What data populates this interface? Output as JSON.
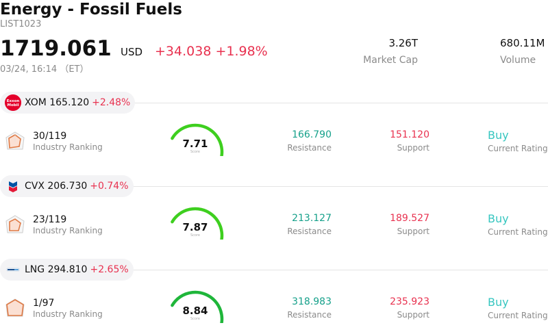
{
  "header": {
    "title": "Energy - Fossil Fuels",
    "code": "LIST1023",
    "price": "1719.061",
    "currency": "USD",
    "change": "+34.038 +1.98%",
    "datetime": "03/24, 16:14 （ET）",
    "market_cap_value": "3.26T",
    "market_cap_label": "Market Cap",
    "volume_value": "680.11M",
    "volume_label": "Volume"
  },
  "colors": {
    "up_red": "#e8314f",
    "resistance_green": "#15a08a",
    "rating_teal": "#36c6c0",
    "gauge_green": "#3ecf1f"
  },
  "stocks": [
    {
      "logo_icon": "exxonmobil-logo-icon",
      "logo_text": "Exxon Mobil",
      "ticker_price": "XOM 165.120",
      "pct": "+2.48%",
      "rank": "30/119",
      "rank_label": "Industry Ranking",
      "score": 7.71,
      "score_text": "7.71",
      "score_label": "Score",
      "resistance": "166.790",
      "resistance_label": "Resistance",
      "support": "151.120",
      "support_label": "Support",
      "rating": "Buy",
      "rating_label": "Current Rating"
    },
    {
      "logo_icon": "chevron-logo-icon",
      "ticker_price": "CVX 206.730",
      "pct": "+0.74%",
      "rank": "23/119",
      "rank_label": "Industry Ranking",
      "score": 7.87,
      "score_text": "7.87",
      "score_label": "Score",
      "resistance": "213.127",
      "resistance_label": "Resistance",
      "support": "189.527",
      "support_label": "Support",
      "rating": "Buy",
      "rating_label": "Current Rating"
    },
    {
      "logo_icon": "cheniere-logo-icon",
      "ticker_price": "LNG 294.810",
      "pct": "+2.65%",
      "rank": "1/97",
      "rank_label": "Industry Ranking",
      "score": 8.84,
      "score_text": "8.84",
      "score_label": "Score",
      "resistance": "318.983",
      "resistance_label": "Resistance",
      "support": "235.923",
      "support_label": "Support",
      "rating": "Buy",
      "rating_label": "Current Rating"
    }
  ]
}
